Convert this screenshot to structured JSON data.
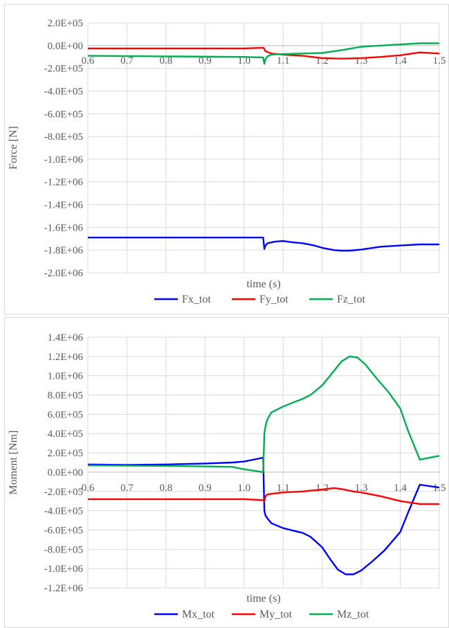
{
  "chart_data": [
    {
      "type": "line",
      "title": "",
      "xlabel": "time (s)",
      "ylabel": "Force [N]",
      "xlim": [
        0.6,
        1.5
      ],
      "ylim": [
        -2000000,
        200000
      ],
      "x_ticks": [
        "0.6",
        "0.7",
        "0.8",
        "0.9",
        "1.0",
        "1.1",
        "1.2",
        "1.3",
        "1.4",
        "1.5"
      ],
      "y_ticks": [
        "2.0E+05",
        "0.0E+00",
        "-2.0E+05",
        "-4.0E+05",
        "-6.0E+05",
        "-8.0E+05",
        "-1.0E+06",
        "-1.2E+06",
        "-1.4E+06",
        "-1.6E+06",
        "-1.8E+06",
        "-2.0E+06"
      ],
      "grid": true,
      "legend_position": "bottom",
      "series": [
        {
          "name": "Fx_tot",
          "color": "#0000ff",
          "x": [
            0.6,
            1.0,
            1.049,
            1.052,
            1.055,
            1.06,
            1.08,
            1.1,
            1.12,
            1.15,
            1.18,
            1.2,
            1.23,
            1.25,
            1.27,
            1.3,
            1.35,
            1.4,
            1.45,
            1.5
          ],
          "y": [
            -1690000,
            -1690000,
            -1690000,
            -1790000,
            -1760000,
            -1740000,
            -1725000,
            -1720000,
            -1730000,
            -1740000,
            -1760000,
            -1780000,
            -1800000,
            -1805000,
            -1805000,
            -1795000,
            -1770000,
            -1760000,
            -1750000,
            -1750000
          ]
        },
        {
          "name": "Fy_tot",
          "color": "#ff0000",
          "x": [
            0.6,
            1.0,
            1.045,
            1.05,
            1.055,
            1.07,
            1.1,
            1.15,
            1.2,
            1.25,
            1.3,
            1.35,
            1.4,
            1.45,
            1.5
          ],
          "y": [
            -25000,
            -25000,
            -20000,
            -20000,
            -50000,
            -70000,
            -80000,
            -90000,
            -110000,
            -115000,
            -110000,
            -100000,
            -85000,
            -60000,
            -70000
          ]
        },
        {
          "name": "Fz_tot",
          "color": "#00b050",
          "x": [
            0.6,
            0.8,
            1.0,
            1.049,
            1.052,
            1.055,
            1.06,
            1.07,
            1.1,
            1.15,
            1.2,
            1.25,
            1.3,
            1.35,
            1.4,
            1.45,
            1.5
          ],
          "y": [
            -90000,
            -95000,
            -100000,
            -105000,
            -160000,
            -120000,
            -95000,
            -80000,
            -75000,
            -70000,
            -65000,
            -40000,
            -10000,
            0,
            10000,
            20000,
            20000
          ]
        }
      ]
    },
    {
      "type": "line",
      "title": "",
      "xlabel": "time (s)",
      "ylabel": "Moment [Nm]",
      "xlim": [
        0.6,
        1.5
      ],
      "ylim": [
        -1200000,
        1400000
      ],
      "x_ticks": [
        "0.6",
        "0.7",
        "0.8",
        "0.9",
        "1.0",
        "1.1",
        "1.2",
        "1.3",
        "1.4",
        "1.5"
      ],
      "y_ticks": [
        "1.4E+06",
        "1.2E+06",
        "1.0E+06",
        "8.0E+05",
        "6.0E+05",
        "4.0E+05",
        "2.0E+05",
        "0.0E+00",
        "-2.0E+05",
        "-4.0E+05",
        "-6.0E+05",
        "-8.0E+05",
        "-1.0E+06",
        "-1.2E+06"
      ],
      "grid": true,
      "legend_position": "bottom",
      "series": [
        {
          "name": "Mx_tot",
          "color": "#0000ff",
          "x": [
            0.6,
            0.7,
            0.8,
            0.9,
            0.97,
            1.0,
            1.049,
            1.052,
            1.055,
            1.06,
            1.07,
            1.1,
            1.13,
            1.15,
            1.17,
            1.2,
            1.22,
            1.24,
            1.26,
            1.28,
            1.3,
            1.33,
            1.36,
            1.4,
            1.42,
            1.45,
            1.5
          ],
          "y": [
            80000,
            75000,
            80000,
            90000,
            100000,
            110000,
            150000,
            -400000,
            -450000,
            -480000,
            -530000,
            -580000,
            -610000,
            -630000,
            -670000,
            -780000,
            -900000,
            -1010000,
            -1060000,
            -1060000,
            -1020000,
            -920000,
            -810000,
            -620000,
            -420000,
            -130000,
            -160000
          ]
        },
        {
          "name": "My_tot",
          "color": "#ff0000",
          "x": [
            0.6,
            0.8,
            1.0,
            1.049,
            1.052,
            1.055,
            1.06,
            1.08,
            1.1,
            1.15,
            1.2,
            1.23,
            1.25,
            1.28,
            1.3,
            1.35,
            1.4,
            1.45,
            1.5
          ],
          "y": [
            -280000,
            -280000,
            -280000,
            -290000,
            -300000,
            -250000,
            -230000,
            -220000,
            -210000,
            -200000,
            -180000,
            -165000,
            -175000,
            -200000,
            -210000,
            -250000,
            -300000,
            -330000,
            -330000
          ]
        },
        {
          "name": "Mz_tot",
          "color": "#00b050",
          "x": [
            0.6,
            0.8,
            0.9,
            0.97,
            1.0,
            1.049,
            1.052,
            1.055,
            1.06,
            1.07,
            1.1,
            1.13,
            1.15,
            1.17,
            1.2,
            1.23,
            1.25,
            1.27,
            1.29,
            1.31,
            1.34,
            1.37,
            1.4,
            1.42,
            1.45,
            1.5
          ],
          "y": [
            70000,
            65000,
            60000,
            55000,
            30000,
            0,
            400000,
            480000,
            550000,
            620000,
            680000,
            730000,
            760000,
            800000,
            900000,
            1050000,
            1150000,
            1200000,
            1190000,
            1120000,
            970000,
            830000,
            660000,
            430000,
            130000,
            170000
          ]
        }
      ]
    }
  ]
}
